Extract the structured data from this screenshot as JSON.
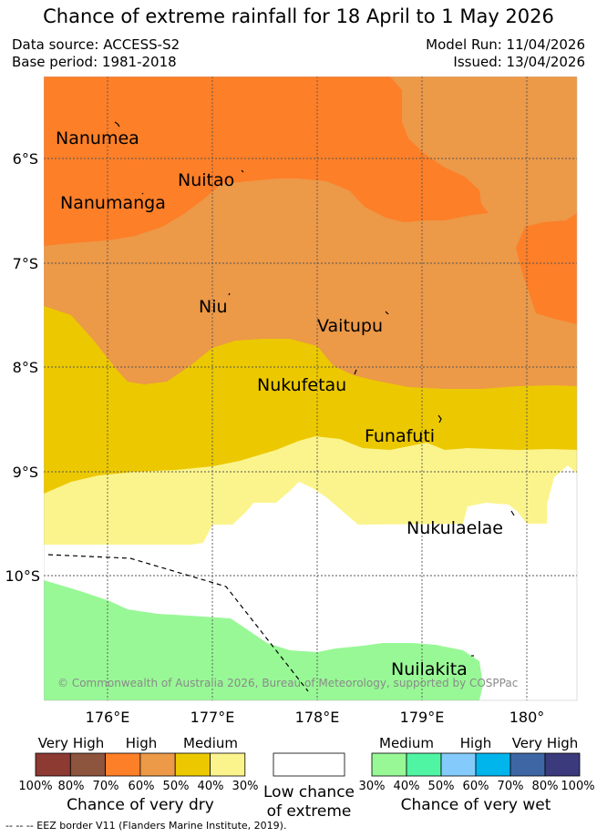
{
  "title": "Chance of extreme rainfall for 18 April to 1 May 2026",
  "meta": {
    "data_source": "Data source: ACCESS-S2",
    "base_period": "Base period: 1981-2018",
    "model_run": "Model Run: 11/04/2026",
    "issued": "Issued: 13/04/2026"
  },
  "map": {
    "lat_labels": [
      "6°S",
      "7°S",
      "8°S",
      "9°S",
      "10°S"
    ],
    "lon_labels": [
      "176°E",
      "177°E",
      "178°E",
      "179°E",
      "180°"
    ],
    "places": [
      "Nanumea",
      "Nuitao",
      "Nanumanga",
      "Niu",
      "Vaitupu",
      "Nukufetau",
      "Funafuti",
      "Nukulaelae",
      "Nuilakita"
    ],
    "copyright": "© Commonwealth of Australia 2026, Bureau of Meteorology, supported by COSPPac"
  },
  "legend": {
    "dry": {
      "headers": [
        "Very High",
        "High",
        "Medium"
      ],
      "colors": [
        "#8c3a32",
        "#8d543e",
        "#fd7f28",
        "#ec9948",
        "#ecc800",
        "#fbf48c"
      ],
      "ticks": [
        "100%",
        "80%",
        "70%",
        "60%",
        "50%",
        "40%",
        "30%"
      ],
      "caption": "Chance of very dry"
    },
    "low": {
      "color": "#ffffff",
      "caption_line1": "Low chance",
      "caption_line2": "of extreme"
    },
    "wet": {
      "headers": [
        "Medium",
        "High",
        "Very High"
      ],
      "colors": [
        "#98f896",
        "#50f5a4",
        "#84cbfb",
        "#00b4ec",
        "#3e66a4",
        "#3b3a7c"
      ],
      "ticks": [
        "30%",
        "40%",
        "50%",
        "60%",
        "70%",
        "80%",
        "100%"
      ],
      "caption": "Chance of very wet"
    },
    "eez_note": "--  --  -- EEZ border V11 (Flanders Marine Institute, 2019)."
  }
}
